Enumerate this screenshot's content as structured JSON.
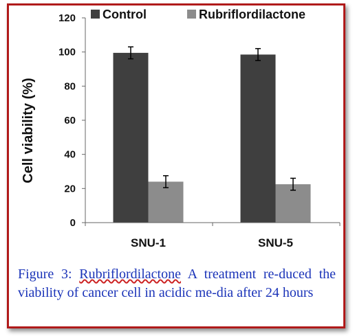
{
  "chart_data": {
    "type": "bar",
    "categories": [
      "SNU-1",
      "SNU-5"
    ],
    "series": [
      {
        "name": "Control",
        "values": [
          99.5,
          98.5
        ],
        "errors": [
          3.5,
          3.5
        ],
        "color": "#3f3f3f"
      },
      {
        "name": "Rubriflordilactone",
        "values": [
          24,
          22.5
        ],
        "errors": [
          3.5,
          3.5
        ],
        "color": "#8c8c8c"
      }
    ],
    "ylabel": "Cell viability (%)",
    "xlabel": "",
    "ylim": [
      0,
      120
    ],
    "yticks": [
      0,
      20,
      40,
      60,
      80,
      100,
      120
    ],
    "grid": false,
    "legend": "top"
  },
  "caption": {
    "prefix": "Figure 3: ",
    "compound": "Rubriflordilactone",
    "rest": " A treatment re-duced the viability of cancer cell in acidic me-dia after 24 hours"
  }
}
